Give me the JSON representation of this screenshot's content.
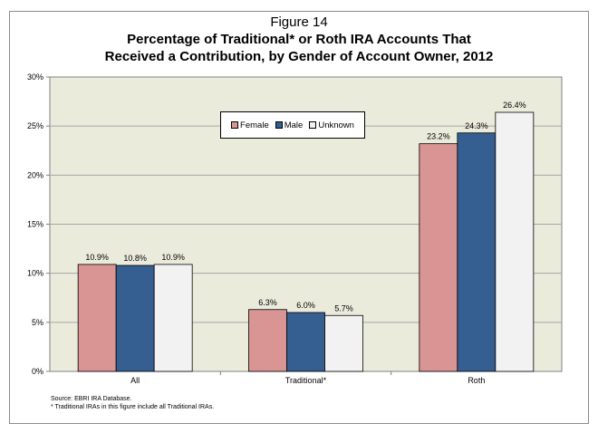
{
  "figure_label": "Figure 14",
  "title_line_1": "Percentage of Traditional* or Roth IRA Accounts That",
  "title_line_2": "Received a Contribution, by Gender of Account Owner, 2012",
  "notes": {
    "source": "Source: EBRI IRA Database.",
    "traditional": "* Traditional IRAs in this figure include all Traditional IRAs."
  },
  "colors": {
    "female": "#d99594",
    "male": "#355e91",
    "unknown": "#f2f2f2",
    "plot_bg": "#ebebdc"
  },
  "chart_data": {
    "type": "bar",
    "title": "Percentage of Traditional* or Roth IRA Accounts That Received a Contribution, by Gender of Account Owner, 2012",
    "categories": [
      "All",
      "Traditional*",
      "Roth"
    ],
    "series": [
      {
        "name": "Female",
        "values": [
          10.9,
          6.3,
          23.2
        ],
        "labels": [
          "10.9%",
          "6.3%",
          "23.2%"
        ]
      },
      {
        "name": "Male",
        "values": [
          10.8,
          6.0,
          24.3
        ],
        "labels": [
          "10.8%",
          "6.0%",
          "24.3%"
        ]
      },
      {
        "name": "Unknown",
        "values": [
          10.9,
          5.7,
          26.4
        ],
        "labels": [
          "10.9%",
          "5.7%",
          "26.4%"
        ]
      }
    ],
    "ylim": [
      0,
      30
    ],
    "yticks": [
      0,
      5,
      10,
      15,
      20,
      25,
      30
    ],
    "ytick_labels": [
      "0%",
      "5%",
      "10%",
      "15%",
      "20%",
      "25%",
      "30%"
    ],
    "xlabel": "",
    "ylabel": "",
    "grid": true,
    "legend_position": "top-center"
  }
}
